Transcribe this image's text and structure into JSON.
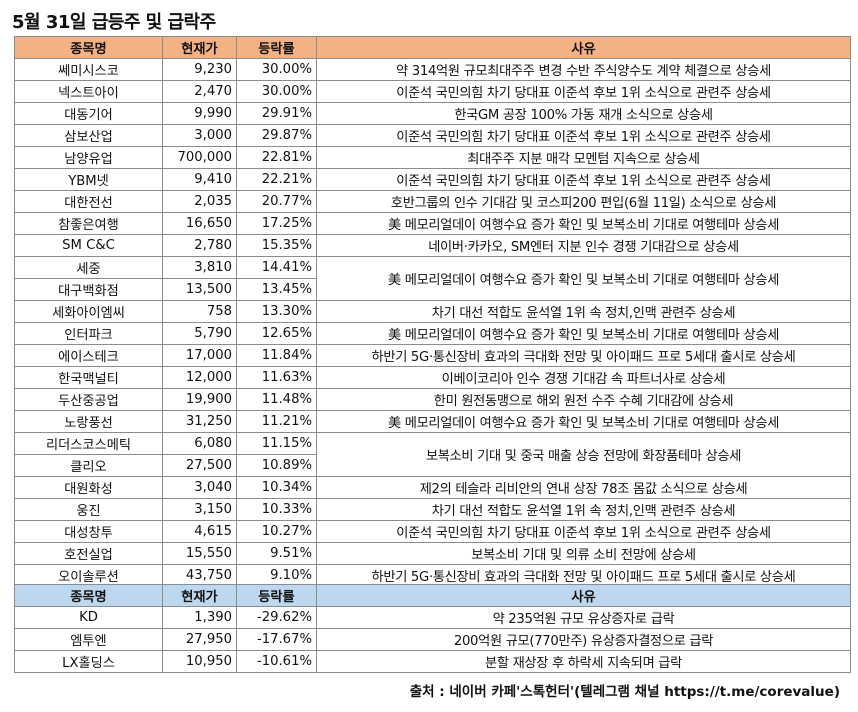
{
  "title": "5월 31일 급등주 및 급락주",
  "rising": {
    "headers": [
      "종목명",
      "현재가",
      "등락률",
      "사유"
    ],
    "rows": [
      {
        "name": "쎄미시스코",
        "price": "9,230",
        "rate": "30.00%",
        "reason": "약 314억원 규모최대주주 변경 수반 주식양수도 계약 체결으로 상승세",
        "span": 1
      },
      {
        "name": "넥스트아이",
        "price": "2,470",
        "rate": "30.00%",
        "reason": "이준석 국민의힘 차기 당대표 이준석 후보 1위 소식으로 관련주 상승세",
        "span": 1
      },
      {
        "name": "대동기어",
        "price": "9,990",
        "rate": "29.91%",
        "reason": "한국GM 공장 100% 가동 재개 소식으로 상승세",
        "span": 1
      },
      {
        "name": "삼보산업",
        "price": "3,000",
        "rate": "29.87%",
        "reason": "이준석 국민의힘 차기 당대표 이준석 후보 1위 소식으로 관련주 상승세",
        "span": 1
      },
      {
        "name": "남양유업",
        "price": "700,000",
        "rate": "22.81%",
        "reason": "최대주주 지분 매각 모멘텀 지속으로 상승세",
        "span": 1
      },
      {
        "name": "YBM넷",
        "price": "9,410",
        "rate": "22.21%",
        "reason": "이준석 국민의힘 차기 당대표 이준석 후보 1위 소식으로 관련주 상승세",
        "span": 1
      },
      {
        "name": "대한전선",
        "price": "2,035",
        "rate": "20.77%",
        "reason": "호반그룹의 인수 기대감 및 코스피200 편입(6월 11일) 소식으로 상승세",
        "span": 1
      },
      {
        "name": "참좋은여행",
        "price": "16,650",
        "rate": "17.25%",
        "reason": "美 메모리얼데이 여행수요 증가 확인 및 보복소비 기대로 여행테마 상승세",
        "span": 1
      },
      {
        "name": "SM C&C",
        "price": "2,780",
        "rate": "15.35%",
        "reason": "네이버·카카오, SM엔터 지분 인수 경쟁 기대감으로 상승세",
        "span": 1
      },
      {
        "name": "세중",
        "price": "3,810",
        "rate": "14.41%",
        "reason": "美 메모리얼데이 여행수요 증가 확인 및 보복소비 기대로 여행테마 상승세",
        "span": 2
      },
      {
        "name": "대구백화점",
        "price": "13,500",
        "rate": "13.45%",
        "reason": null,
        "span": 0
      },
      {
        "name": "세화아이엠씨",
        "price": "758",
        "rate": "13.30%",
        "reason": "차기 대선 적합도 윤석열 1위 속 정치,인맥 관련주 상승세",
        "span": 1
      },
      {
        "name": "인터파크",
        "price": "5,790",
        "rate": "12.65%",
        "reason": "美 메모리얼데이 여행수요 증가 확인 및 보복소비 기대로 여행테마 상승세",
        "span": 1
      },
      {
        "name": "에이스테크",
        "price": "17,000",
        "rate": "11.84%",
        "reason": "하반기 5G·통신장비 효과의 극대화 전망 및 아이패드 프로 5세대 출시로 상승세",
        "span": 1
      },
      {
        "name": "한국맥널티",
        "price": "12,000",
        "rate": "11.63%",
        "reason": "이베이코리아 인수 경쟁 기대감 속 파트너사로 상승세",
        "span": 1
      },
      {
        "name": "두산중공업",
        "price": "19,900",
        "rate": "11.48%",
        "reason": "한미 원전동맹으로 해외 원전 수주 수혜 기대감에 상승세",
        "span": 1
      },
      {
        "name": "노랑풍선",
        "price": "31,250",
        "rate": "11.21%",
        "reason": "美 메모리얼데이 여행수요 증가 확인 및 보복소비 기대로 여행테마 상승세",
        "span": 1
      },
      {
        "name": "리더스코스메틱",
        "price": "6,080",
        "rate": "11.15%",
        "reason": "보복소비 기대 및 중국 매출 상승 전망에 화장품테마 상승세",
        "span": 2
      },
      {
        "name": "클리오",
        "price": "27,500",
        "rate": "10.89%",
        "reason": null,
        "span": 0
      },
      {
        "name": "대원화성",
        "price": "3,040",
        "rate": "10.34%",
        "reason": "제2의 테슬라 리비안의 연내 상장 78조 몸값 소식으로 상승세",
        "span": 1
      },
      {
        "name": "웅진",
        "price": "3,150",
        "rate": "10.33%",
        "reason": "차기 대선 적합도 윤석열 1위 속 정치,인맥 관련주 상승세",
        "span": 1
      },
      {
        "name": "대성창투",
        "price": "4,615",
        "rate": "10.27%",
        "reason": "이준석 국민의힘 차기 당대표 이준석 후보 1위 소식으로 관련주 상승세",
        "span": 1
      },
      {
        "name": "호전실업",
        "price": "15,550",
        "rate": "9.51%",
        "reason": "보복소비 기대 및 의류 소비 전망에 상승세",
        "span": 1
      },
      {
        "name": "오이솔루션",
        "price": "43,750",
        "rate": "9.10%",
        "reason": "하반기 5G·통신장비 효과의 극대화 전망 및 아이패드 프로 5세대 출시로 상승세",
        "span": 1
      }
    ]
  },
  "falling": {
    "headers": [
      "종목명",
      "현재가",
      "등락률",
      "사유"
    ],
    "rows": [
      {
        "name": "KD",
        "price": "1,390",
        "rate": "-29.62%",
        "reason": "약 235억원 규모 유상증자로 급락",
        "span": 1
      },
      {
        "name": "엠투엔",
        "price": "27,950",
        "rate": "-17.67%",
        "reason": "200억원 규모(770만주) 유상증자결정으로 급락",
        "span": 1
      },
      {
        "name": "LX홀딩스",
        "price": "10,950",
        "rate": "-10.61%",
        "reason": "분할 재상장 후 하락세 지속되며 급락",
        "span": 1
      }
    ]
  },
  "source": "출처 : 네이버 카페'스톡헌터'(텔레그램 채널 https://t.me/corevalue)"
}
